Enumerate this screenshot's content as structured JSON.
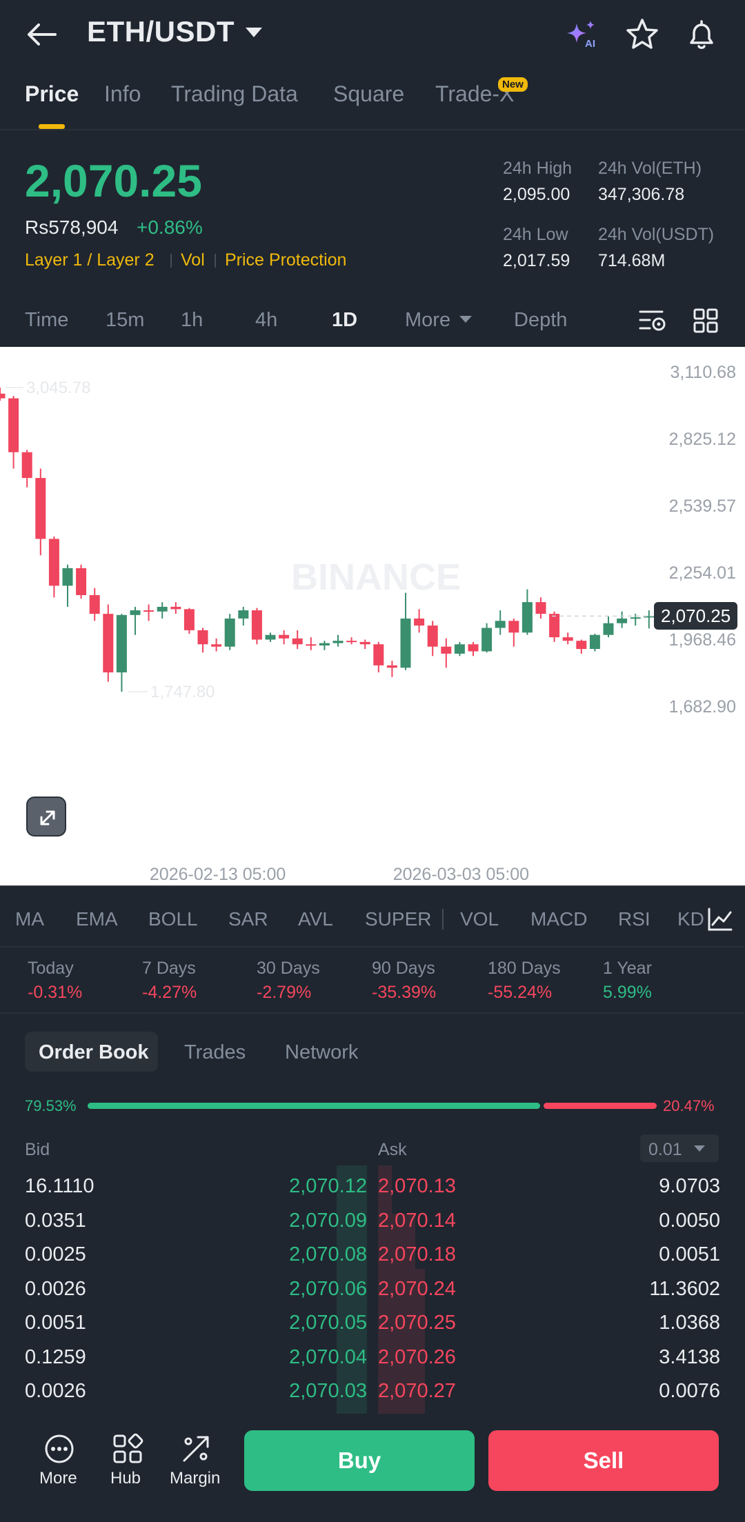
{
  "header": {
    "pair": "ETH/USDT",
    "icons": [
      "back-arrow",
      "ai-sparkle",
      "star",
      "bell"
    ],
    "ai_label": "AI"
  },
  "tabs": [
    {
      "label": "Price",
      "active": true
    },
    {
      "label": "Info"
    },
    {
      "label": "Trading Data"
    },
    {
      "label": "Square"
    },
    {
      "label": "Trade-X",
      "badge": "New"
    }
  ],
  "price": {
    "last": "2,070.25",
    "local": "Rs578,904",
    "change_pct": "+0.86%",
    "tags": [
      "Layer 1 / Layer 2",
      "Vol",
      "Price Protection"
    ]
  },
  "stats": {
    "high_label": "24h High",
    "high": "2,095.00",
    "vol_eth_label": "24h Vol(ETH)",
    "vol_eth": "347,306.78",
    "low_label": "24h Low",
    "low": "2,017.59",
    "vol_usdt_label": "24h Vol(USDT)",
    "vol_usdt": "714.68M"
  },
  "intervals": [
    "Time",
    "15m",
    "1h",
    "4h",
    "1D",
    "More",
    "Depth"
  ],
  "selected_interval": "1D",
  "chart_data": {
    "type": "candlestick",
    "interval": "1D",
    "watermark": "BINANCE",
    "y_ticks": [
      "3,110.68",
      "2,825.12",
      "2,539.57",
      "2,254.01",
      "1,968.46",
      "1,682.90"
    ],
    "y_tick_values": [
      3110.68,
      2825.12,
      2539.57,
      2254.01,
      1968.46,
      1682.9
    ],
    "x_ticks": [
      "2026-02-13 05:00",
      "2026-03-03 05:00"
    ],
    "high_marker": "3,045.78",
    "low_marker": "1,747.80",
    "last_price": "2,070.25",
    "ohlc": [
      [
        3020,
        3045.78,
        2990,
        3000
      ],
      [
        3000,
        3010,
        2700,
        2770
      ],
      [
        2770,
        2780,
        2620,
        2660
      ],
      [
        2660,
        2700,
        2330,
        2400
      ],
      [
        2400,
        2410,
        2150,
        2200
      ],
      [
        2200,
        2290,
        2110,
        2275
      ],
      [
        2275,
        2290,
        2145,
        2160
      ],
      [
        2160,
        2190,
        2050,
        2080
      ],
      [
        2080,
        2120,
        1790,
        1830
      ],
      [
        1830,
        2080,
        1747.8,
        2075
      ],
      [
        2075,
        2110,
        1990,
        2095
      ],
      [
        2095,
        2120,
        2050,
        2090
      ],
      [
        2090,
        2130,
        2060,
        2110
      ],
      [
        2110,
        2130,
        2080,
        2100
      ],
      [
        2100,
        2105,
        1995,
        2010
      ],
      [
        2010,
        2020,
        1915,
        1950
      ],
      [
        1950,
        1975,
        1920,
        1940
      ],
      [
        1940,
        2080,
        1925,
        2060
      ],
      [
        2060,
        2110,
        2030,
        2095
      ],
      [
        2095,
        2105,
        1950,
        1970
      ],
      [
        1970,
        2000,
        1960,
        1990
      ],
      [
        1990,
        2010,
        1950,
        1975
      ],
      [
        1975,
        2010,
        1930,
        1950
      ],
      [
        1950,
        1980,
        1925,
        1945
      ],
      [
        1945,
        1965,
        1925,
        1955
      ],
      [
        1955,
        1990,
        1940,
        1965
      ],
      [
        1965,
        1980,
        1950,
        1960
      ],
      [
        1960,
        1970,
        1930,
        1950
      ],
      [
        1950,
        1960,
        1830,
        1860
      ],
      [
        1860,
        1880,
        1810,
        1850
      ],
      [
        1850,
        2170,
        1840,
        2060
      ],
      [
        2060,
        2100,
        2000,
        2030
      ],
      [
        2030,
        2050,
        1900,
        1940
      ],
      [
        1940,
        1975,
        1850,
        1910
      ],
      [
        1910,
        1960,
        1900,
        1950
      ],
      [
        1950,
        1960,
        1900,
        1920
      ],
      [
        1920,
        2040,
        1915,
        2020
      ],
      [
        2020,
        2095,
        1990,
        2050
      ],
      [
        2050,
        2060,
        1940,
        2000
      ],
      [
        2000,
        2185,
        1990,
        2130
      ],
      [
        2130,
        2150,
        2060,
        2080
      ],
      [
        2080,
        2090,
        1960,
        1980
      ],
      [
        1980,
        2000,
        1950,
        1965
      ],
      [
        1965,
        1970,
        1910,
        1930
      ],
      [
        1930,
        1995,
        1920,
        1990
      ],
      [
        1990,
        2070,
        1980,
        2040
      ],
      [
        2040,
        2090,
        2020,
        2060
      ],
      [
        2060,
        2080,
        2030,
        2065
      ],
      [
        2065,
        2095,
        2017.59,
        2070.25
      ]
    ]
  },
  "indicators": [
    "MA",
    "EMA",
    "BOLL",
    "SAR",
    "AVL",
    "SUPER",
    "VOL",
    "MACD",
    "RSI",
    "KD"
  ],
  "performance": [
    {
      "label": "Today",
      "value": "-0.31%"
    },
    {
      "label": "7 Days",
      "value": "-4.27%"
    },
    {
      "label": "30 Days",
      "value": "-2.79%"
    },
    {
      "label": "90 Days",
      "value": "-35.39%"
    },
    {
      "label": "180 Days",
      "value": "-55.24%"
    },
    {
      "label": "1 Year",
      "value": "5.99%"
    }
  ],
  "orderbook_tabs": [
    "Order Book",
    "Trades",
    "Network"
  ],
  "ratio": {
    "bid": "79.53%",
    "ask": "20.47%",
    "bid_fraction": 0.7953
  },
  "orderbook": {
    "bid_header": "Bid",
    "ask_header": "Ask",
    "precision": "0.01",
    "rows": [
      {
        "bid_qty": "16.1110",
        "bid_price": "2,070.12",
        "ask_price": "2,070.13",
        "ask_qty": "9.0703"
      },
      {
        "bid_qty": "0.0351",
        "bid_price": "2,070.09",
        "ask_price": "2,070.14",
        "ask_qty": "0.0050"
      },
      {
        "bid_qty": "0.0025",
        "bid_price": "2,070.08",
        "ask_price": "2,070.18",
        "ask_qty": "0.0051"
      },
      {
        "bid_qty": "0.0026",
        "bid_price": "2,070.06",
        "ask_price": "2,070.24",
        "ask_qty": "11.3602"
      },
      {
        "bid_qty": "0.0051",
        "bid_price": "2,070.05",
        "ask_price": "2,070.25",
        "ask_qty": "1.0368"
      },
      {
        "bid_qty": "0.1259",
        "bid_price": "2,070.04",
        "ask_price": "2,070.26",
        "ask_qty": "3.4138"
      },
      {
        "bid_qty": "0.0026",
        "bid_price": "2,070.03",
        "ask_price": "2,070.27",
        "ask_qty": "0.0076"
      }
    ]
  },
  "bottom_nav": {
    "more": "More",
    "hub": "Hub",
    "margin": "Margin",
    "buy": "Buy",
    "sell": "Sell"
  },
  "colors": {
    "up": "#2ebd85",
    "down": "#f6465d",
    "accent": "#f0b90b",
    "bg": "#1f2630"
  }
}
